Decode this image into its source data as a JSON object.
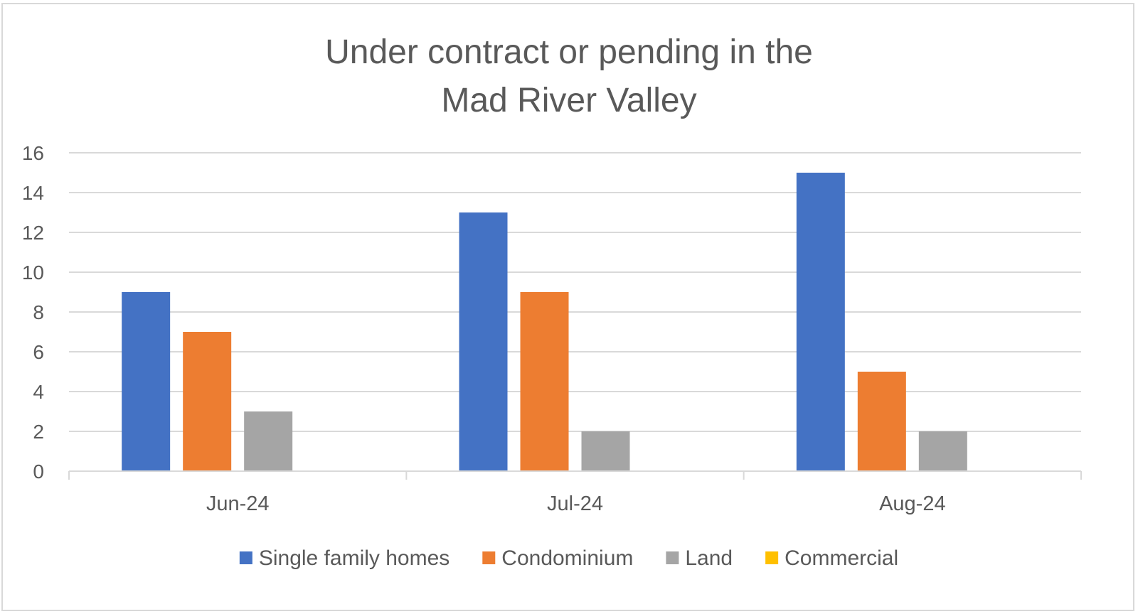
{
  "chart_data": {
    "type": "bar",
    "title_line1": "Under contract or pending in the",
    "title_line2": "Mad River Valley",
    "categories": [
      "Jun-24",
      "Jul-24",
      "Aug-24"
    ],
    "series": [
      {
        "name": "Single family homes",
        "color": "#4472C4",
        "values": [
          9,
          13,
          15
        ]
      },
      {
        "name": "Condominium",
        "color": "#ED7D31",
        "values": [
          7,
          9,
          5
        ]
      },
      {
        "name": "Land",
        "color": "#A5A5A5",
        "values": [
          3,
          2,
          2
        ]
      },
      {
        "name": "Commercial",
        "color": "#FFC000",
        "values": [
          0,
          0,
          0
        ]
      }
    ],
    "ylim": [
      0,
      16
    ],
    "yticks": [
      0,
      2,
      4,
      6,
      8,
      10,
      12,
      14,
      16
    ],
    "grid": true,
    "legend_position": "bottom"
  }
}
